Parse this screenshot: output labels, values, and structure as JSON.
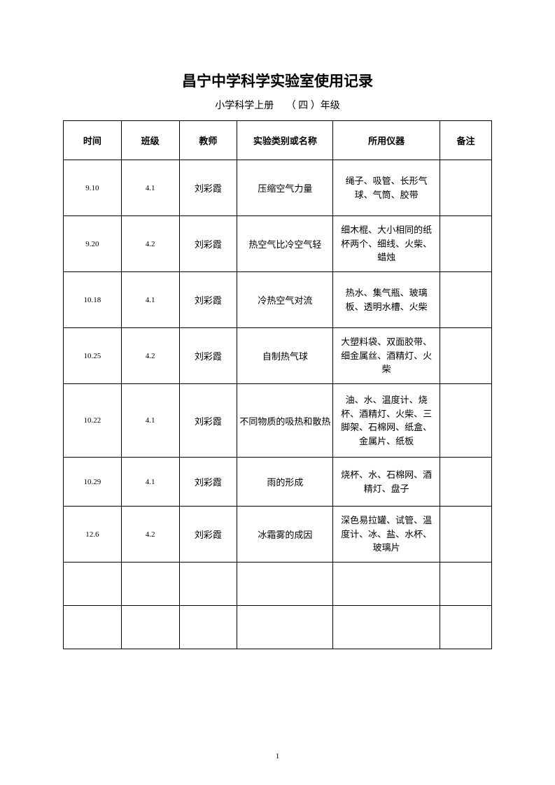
{
  "title": "昌宁中学科学实验室使用记录",
  "subtitle_prefix": "小学科学上册",
  "subtitle_grade": "（ 四 ）年级",
  "page_number": "1",
  "table": {
    "headers": {
      "time": "时间",
      "class": "班级",
      "teacher": "教师",
      "experiment": "实验类别或名称",
      "equipment": "所用仪器",
      "note": "备注"
    },
    "rows": [
      {
        "time": "9.10",
        "class": "4.1",
        "teacher": "刘彩霞",
        "experiment": "压缩空气力量",
        "equipment": "绳子、吸管、长形气球、气筒、胶带",
        "note": "",
        "row_class": "data-row"
      },
      {
        "time": "9.20",
        "class": "4.2",
        "teacher": "刘彩霞",
        "experiment": "热空气比冷空气轻",
        "equipment": "细木棍、大小相同的纸杯两个、细线、火柴、蜡烛",
        "note": "",
        "row_class": "data-row"
      },
      {
        "time": "10.18",
        "class": "4.1",
        "teacher": "刘彩霞",
        "experiment": "冷热空气对流",
        "equipment": "热水、集气瓶、玻璃板、透明水槽、火柴",
        "note": "",
        "row_class": "data-row"
      },
      {
        "time": "10.25",
        "class": "4.2",
        "teacher": "刘彩霞",
        "experiment": "自制热气球",
        "equipment": "大塑料袋、双面胶带、细金属丝、酒精灯、火柴",
        "note": "",
        "row_class": "data-row"
      },
      {
        "time": "10.22",
        "class": "4.1",
        "teacher": "刘彩霞",
        "experiment": "不同物质的吸热和散热",
        "equipment": "油、水、温度计、烧杯、酒精灯、火柴、三脚架、石棉网、纸盒、金属片、纸板",
        "note": "",
        "row_class": "data-row-tall"
      },
      {
        "time": "10.29",
        "class": "4.1",
        "teacher": "刘彩霞",
        "experiment": "雨的形成",
        "equipment": "烧杯、水、石棉网、酒精灯、盘子",
        "note": "",
        "row_class": "data-row-short"
      },
      {
        "time": "12.6",
        "class": "4.2",
        "teacher": "刘彩霞",
        "experiment": "冰霜雾的成因",
        "equipment": "深色易拉罐、试管、温度计、冰、盐、水杯、玻璃片",
        "note": "",
        "row_class": "data-row"
      }
    ]
  }
}
